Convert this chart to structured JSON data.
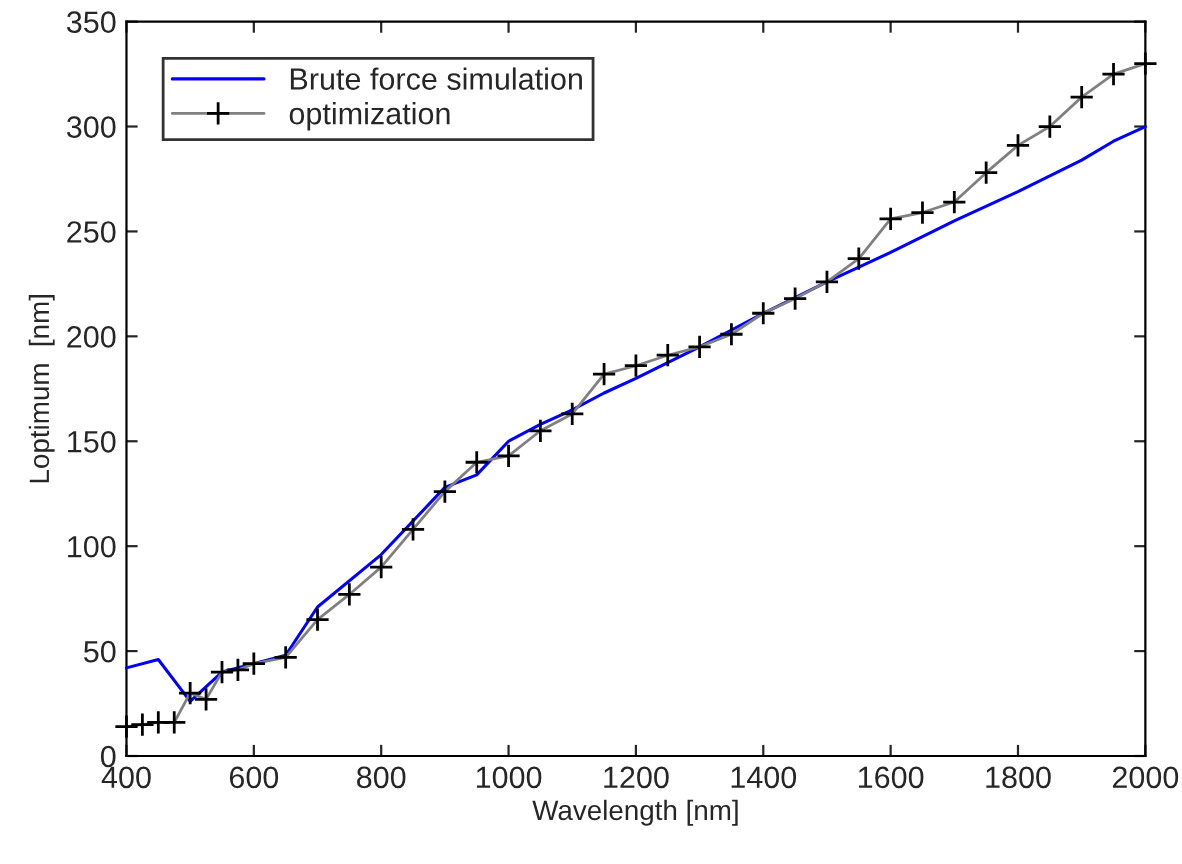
{
  "chart_data": {
    "type": "line",
    "xlabel": "Wavelength [nm]",
    "ylabel": "Loptimum  [nm]",
    "xlim": [
      400,
      2000
    ],
    "xticks": [
      400,
      600,
      800,
      1000,
      1200,
      1400,
      1600,
      1800,
      2000
    ],
    "ylim": [
      0,
      350
    ],
    "yticks": [
      0,
      50,
      100,
      150,
      200,
      250,
      300,
      350
    ],
    "grid": false,
    "legend": "top left",
    "series": [
      {
        "name": "Brute force simulation",
        "color": "#0000ff",
        "marker": "none",
        "x": [
          400,
          450,
          500,
          550,
          600,
          650,
          700,
          800,
          900,
          950,
          1000,
          1050,
          1100,
          1150,
          1200,
          1300,
          1400,
          1500,
          1600,
          1700,
          1800,
          1900,
          1950,
          2000
        ],
        "values": [
          42,
          46,
          26,
          40,
          44,
          48,
          71,
          96,
          128,
          134,
          150,
          158,
          165,
          173,
          180,
          195,
          211,
          226,
          240,
          255,
          269,
          284,
          293,
          300
        ]
      },
      {
        "name": "optimization",
        "color": "#000000",
        "marker": "cross",
        "x": [
          400,
          425,
          450,
          475,
          500,
          525,
          550,
          575,
          600,
          650,
          700,
          750,
          800,
          850,
          900,
          950,
          1000,
          1050,
          1100,
          1150,
          1200,
          1250,
          1300,
          1350,
          1400,
          1450,
          1500,
          1550,
          1600,
          1650,
          1700,
          1750,
          1800,
          1850,
          1900,
          1950,
          2000
        ],
        "values": [
          14,
          15,
          16,
          16,
          30,
          27,
          40,
          41,
          44,
          47,
          65,
          77,
          90,
          108,
          126,
          140,
          143,
          155,
          163,
          182,
          186,
          191,
          195,
          201,
          211,
          218,
          226,
          237,
          256,
          259,
          264,
          278,
          291,
          300,
          314,
          325,
          330
        ]
      }
    ]
  }
}
